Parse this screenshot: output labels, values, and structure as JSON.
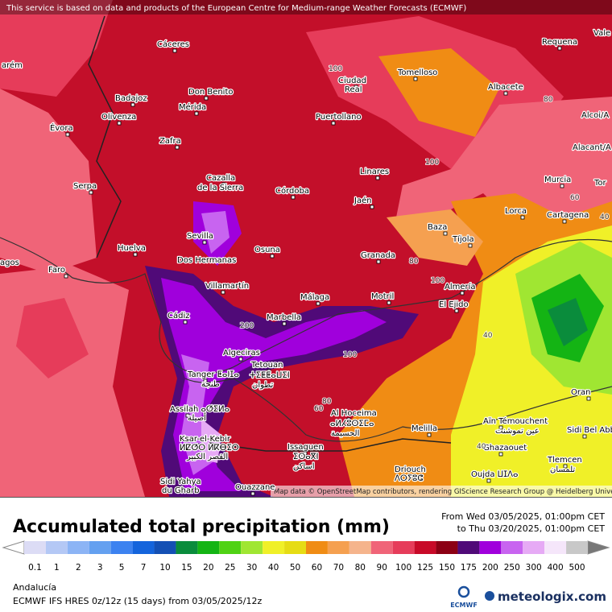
{
  "header": {
    "notice": "This service is based on data and products of the European Centre for Medium-range Weather Forecasts (ECMWF)"
  },
  "map": {
    "places": [
      "arém",
      "Cáceres",
      "Tomelloso",
      "Ciudad",
      "Real",
      "Requena",
      "Vale",
      "Don Benito",
      "Badajoz",
      "Mérida",
      "Albacete",
      "Olivenza",
      "Évora",
      "Puertollano",
      "Alcoi/A",
      "Zafra",
      "Alacant/A",
      "Linares",
      "Murcia",
      "Cazalla",
      "de la Sierra",
      "Serpa",
      "Córdoba",
      "Tor",
      "Jaén",
      "Lorca",
      "Cartagena",
      "Baza",
      "Sevilla",
      "Huelva",
      "Tíjola",
      "Osuna",
      "Granada",
      "agos",
      "Faro",
      "Dos Hermanas",
      "Villamartín",
      "Almería",
      "Málaga",
      "Motril",
      "El Ejido",
      "Cádiz",
      "Marbella",
      "Algeciras",
      "Tanger ⵟⴰⵏⵊⴰ",
      "طنجة",
      "Tetouan",
      "ⵜⵉⵟⵟⴰⵡⵉⵏ",
      "تطوان",
      "Oran",
      "Al Hoceima",
      "ⴰⵍⵃⵓⵙⵉⵎⴰ",
      "الحسيمة",
      "Assilah ⴰⵚⵉⵍⴰ",
      "أصيلة",
      "Aïn Témouchent",
      "عين تموشنت",
      "Sidi Bel Abb",
      "Melilla",
      "Ksar-el-Kebir",
      "ⵍⵇⵚⵔ ⵍⴽⴱⵉⵔ",
      "القصر الكبير",
      "Issaguen",
      "ⵉⵙⴰⴳⵏ",
      "اساكن",
      "Ghazaouet",
      "Tlemcen",
      "تلمسان",
      "Driouch",
      "ⴷⵔⵢⵓⵛ",
      "Oujda ⵡⵊⴷⴰ",
      "Sidi Yahya",
      "du Gharb",
      "Ouazzane"
    ],
    "contour_labels": [
      "100",
      "80",
      "100",
      "60",
      "40",
      "80",
      "100",
      "40",
      "200",
      "100",
      "60",
      "80",
      "40"
    ],
    "attribution": "Map data © OpenStreetMap contributors, rendering GIScience Research Group @ Heidelberg University"
  },
  "footer": {
    "title": "Accumulated total precipitation (mm)",
    "from": "From Wed 03/05/2025, 01:00pm CET",
    "to": "to Thu 03/20/2025, 01:00pm CET",
    "region": "Andalucía",
    "model": "ECMWF IFS HRES 0z/12z (15 days) from  03/05/2025/12z",
    "ecmwf": "ECMWF",
    "brand": "meteologix.com"
  },
  "legend": {
    "values": [
      0.1,
      1,
      2,
      3,
      5,
      7,
      10,
      15,
      20,
      25,
      30,
      40,
      50,
      60,
      70,
      80,
      90,
      100,
      125,
      150,
      175,
      200,
      250,
      300,
      400,
      500
    ],
    "colors": [
      "#dcdcf5",
      "#b4c8f5",
      "#8cb4f5",
      "#64a0f0",
      "#3c82f0",
      "#1464dc",
      "#1450b4",
      "#0a8c3c",
      "#14b414",
      "#50d214",
      "#a0e632",
      "#f0f028",
      "#e6dc14",
      "#f08c14",
      "#f5a050",
      "#f5b48c",
      "#f06478",
      "#e63c5a",
      "#c80a28",
      "#8c0014",
      "#500a78",
      "#a000dc",
      "#c864f0",
      "#e6aaf5",
      "#f5e6fa",
      "#c8c8c8"
    ]
  }
}
